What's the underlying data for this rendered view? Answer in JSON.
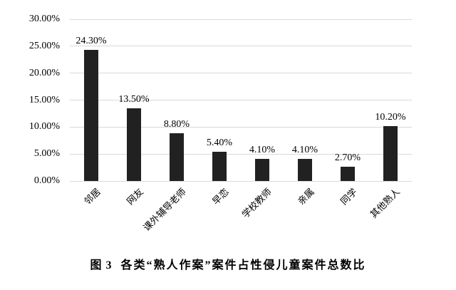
{
  "figure": {
    "caption_prefix": "图 3",
    "caption_title": "各类“熟人作案”案件占性侵儿童案件总数比"
  },
  "chart_data": {
    "type": "bar",
    "caption_prefix": "图 3",
    "caption_title": "各类“熟人作案”案件占性侵儿童案件总数比",
    "categories": [
      "邻居",
      "网友",
      "课外辅导老师",
      "早恋",
      "学校教师",
      "亲属",
      "同学",
      "其他熟人"
    ],
    "values": [
      24.3,
      13.5,
      8.8,
      5.4,
      4.1,
      4.1,
      2.7,
      10.2
    ],
    "value_labels": [
      "24.30%",
      "13.50%",
      "8.80%",
      "5.40%",
      "4.10%",
      "4.10%",
      "2.70%",
      "10.20%"
    ],
    "y_ticks": [
      {
        "value": 0,
        "label": "0.00%"
      },
      {
        "value": 5,
        "label": "5.00%"
      },
      {
        "value": 10,
        "label": "10.00%"
      },
      {
        "value": 15,
        "label": "15.00%"
      },
      {
        "value": 20,
        "label": "20.00%"
      },
      {
        "value": 25,
        "label": "25.00%"
      },
      {
        "value": 30,
        "label": "30.00%"
      }
    ],
    "ylim": [
      0,
      30
    ],
    "xlabel": "",
    "ylabel": "",
    "grid": true,
    "legend": "none",
    "x_tick_rotation": 45,
    "bar_color": "#212121",
    "grid_color": "#d9d9d9",
    "text_color": "#000000",
    "background": "#ffffff"
  }
}
